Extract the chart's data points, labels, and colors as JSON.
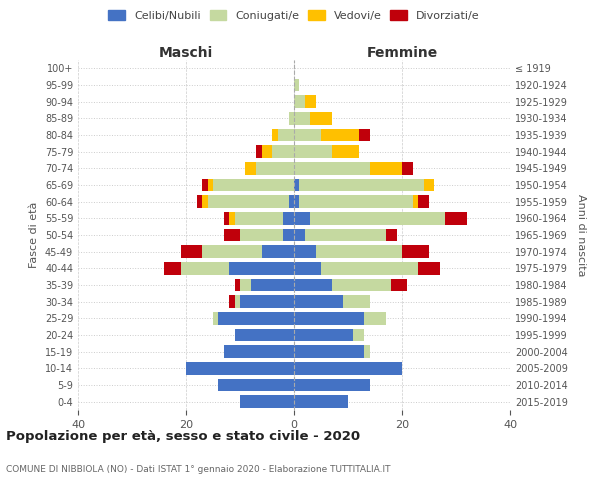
{
  "age_groups": [
    "0-4",
    "5-9",
    "10-14",
    "15-19",
    "20-24",
    "25-29",
    "30-34",
    "35-39",
    "40-44",
    "45-49",
    "50-54",
    "55-59",
    "60-64",
    "65-69",
    "70-74",
    "75-79",
    "80-84",
    "85-89",
    "90-94",
    "95-99",
    "100+"
  ],
  "birth_years": [
    "2015-2019",
    "2010-2014",
    "2005-2009",
    "2000-2004",
    "1995-1999",
    "1990-1994",
    "1985-1989",
    "1980-1984",
    "1975-1979",
    "1970-1974",
    "1965-1969",
    "1960-1964",
    "1955-1959",
    "1950-1954",
    "1945-1949",
    "1940-1944",
    "1935-1939",
    "1930-1934",
    "1925-1929",
    "1920-1924",
    "≤ 1919"
  ],
  "males": {
    "celibe": [
      10,
      14,
      20,
      13,
      11,
      14,
      10,
      8,
      12,
      6,
      2,
      2,
      1,
      0,
      0,
      0,
      0,
      0,
      0,
      0,
      0
    ],
    "coniugato": [
      0,
      0,
      0,
      0,
      0,
      1,
      1,
      2,
      9,
      11,
      8,
      9,
      15,
      15,
      7,
      4,
      3,
      1,
      0,
      0,
      0
    ],
    "vedovo": [
      0,
      0,
      0,
      0,
      0,
      0,
      0,
      0,
      0,
      0,
      0,
      1,
      1,
      1,
      2,
      2,
      1,
      0,
      0,
      0,
      0
    ],
    "divorziato": [
      0,
      0,
      0,
      0,
      0,
      0,
      1,
      1,
      3,
      4,
      3,
      1,
      1,
      1,
      0,
      1,
      0,
      0,
      0,
      0,
      0
    ]
  },
  "females": {
    "nubile": [
      10,
      14,
      20,
      13,
      11,
      13,
      9,
      7,
      5,
      4,
      2,
      3,
      1,
      1,
      0,
      0,
      0,
      0,
      0,
      0,
      0
    ],
    "coniugata": [
      0,
      0,
      0,
      1,
      2,
      4,
      5,
      11,
      18,
      16,
      15,
      25,
      21,
      23,
      14,
      7,
      5,
      3,
      2,
      1,
      0
    ],
    "vedova": [
      0,
      0,
      0,
      0,
      0,
      0,
      0,
      0,
      0,
      0,
      0,
      0,
      1,
      2,
      6,
      5,
      7,
      4,
      2,
      0,
      0
    ],
    "divorziata": [
      0,
      0,
      0,
      0,
      0,
      0,
      0,
      3,
      4,
      5,
      2,
      4,
      2,
      0,
      2,
      0,
      2,
      0,
      0,
      0,
      0
    ]
  },
  "colors": {
    "celibe": "#4472c4",
    "coniugato": "#c5d9a0",
    "vedovo": "#ffc000",
    "divorziato": "#c0000b"
  },
  "xlim": 40,
  "title": "Popolazione per età, sesso e stato civile - 2020",
  "subtitle": "COMUNE DI NIBBIOLA (NO) - Dati ISTAT 1° gennaio 2020 - Elaborazione TUTTITALIA.IT",
  "ylabel_left": "Fasce di età",
  "ylabel_right": "Anni di nascita",
  "xlabel_left": "Maschi",
  "xlabel_right": "Femmine",
  "bg_color": "#ffffff",
  "grid_color": "#cccccc",
  "legend_labels": [
    "Celibi/Nubili",
    "Coniugati/e",
    "Vedovi/e",
    "Divorziati/e"
  ]
}
